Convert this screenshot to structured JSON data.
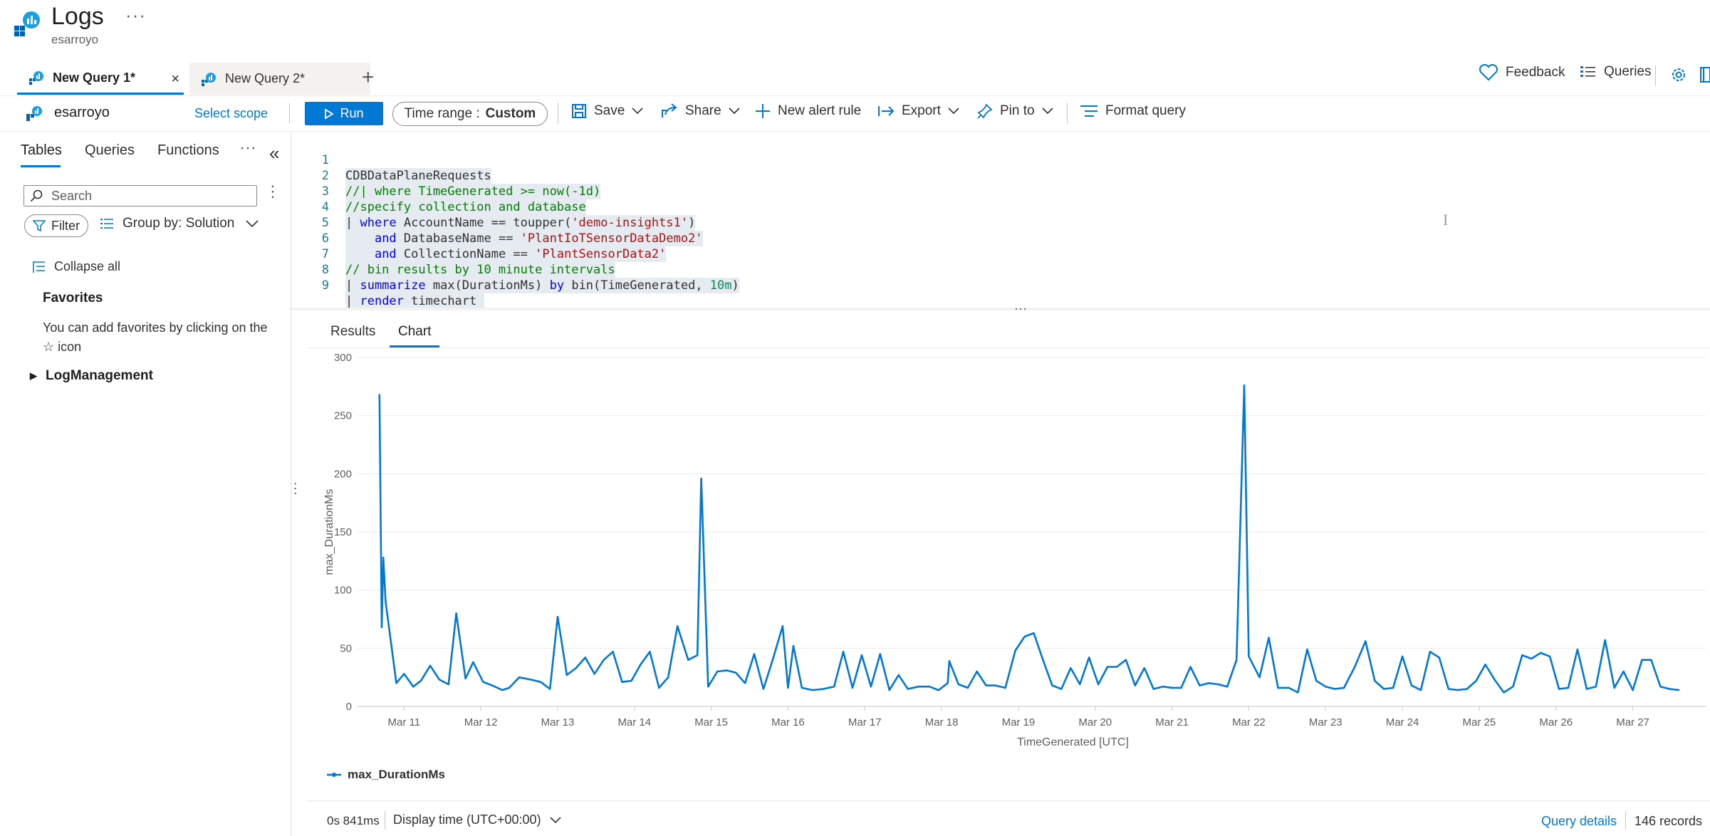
{
  "app": {
    "title": "Logs",
    "subtitle": "esarroyo",
    "more": "···"
  },
  "tabs": [
    {
      "label": "New Query 1*",
      "active": true,
      "close": "×"
    },
    {
      "label": "New Query 2*",
      "active": false
    }
  ],
  "add_tab": "+",
  "header_actions": {
    "feedback": "Feedback",
    "queries": "Queries"
  },
  "toolbar": {
    "scope_name": "esarroyo",
    "select_scope": "Select scope",
    "run": "Run",
    "time_range_label": "Time range :",
    "time_range_value": "Custom",
    "save": "Save",
    "share": "Share",
    "new_alert_rule": "New alert rule",
    "export": "Export",
    "pin_to": "Pin to",
    "format_query": "Format query"
  },
  "left_panel": {
    "tabs": [
      "Tables",
      "Queries",
      "Functions"
    ],
    "more": "···",
    "collapse": "«",
    "search_placeholder": "Search",
    "search_more": "⋮",
    "filter": "Filter",
    "group_by": "Group by: Solution",
    "collapse_all": "Collapse all",
    "favorites_title": "Favorites",
    "favorites_text": "You can add favorites by clicking on the ☆ icon",
    "tree": [
      "LogManagement"
    ]
  },
  "editor": {
    "lines": [
      {
        "n": "1",
        "text": "CDBDataPlaneRequests"
      },
      {
        "n": "2",
        "text": "//| where TimeGenerated >= now(-1d)"
      },
      {
        "n": "3",
        "text": "//specify collection and database"
      },
      {
        "n": "4",
        "text": "| where AccountName == toupper('demo-insights1')"
      },
      {
        "n": "5",
        "text": "    and DatabaseName == 'PlantIoTSensorDataDemo2'"
      },
      {
        "n": "6",
        "text": "    and CollectionName == 'PlantSensorData2'"
      },
      {
        "n": "7",
        "text": "// bin results by 10 minute intervals"
      },
      {
        "n": "8",
        "text": "| summarize max(DurationMs) by bin(TimeGenerated, 10m)"
      },
      {
        "n": "9",
        "text": "| render timechart"
      }
    ],
    "split_dots": "···"
  },
  "results": {
    "tabs": [
      "Results",
      "Chart"
    ],
    "active_tab": "Chart",
    "exec_time": "0s 841ms",
    "display_time": "Display time (UTC+00:00)",
    "query_details": "Query details",
    "records": "146 records"
  },
  "chart_data": {
    "type": "line",
    "xlabel": "TimeGenerated [UTC]",
    "ylabel": "max_DurationMs",
    "ylim": [
      0,
      300
    ],
    "yticks": [
      0,
      50,
      100,
      150,
      200,
      250,
      300
    ],
    "xlim": [
      10.45,
      27.95
    ],
    "xticks": [
      {
        "v": 11,
        "label": "Mar 11"
      },
      {
        "v": 12,
        "label": "Mar 12"
      },
      {
        "v": 13,
        "label": "Mar 13"
      },
      {
        "v": 14,
        "label": "Mar 14"
      },
      {
        "v": 15,
        "label": "Mar 15"
      },
      {
        "v": 16,
        "label": "Mar 16"
      },
      {
        "v": 17,
        "label": "Mar 17"
      },
      {
        "v": 18,
        "label": "Mar 18"
      },
      {
        "v": 19,
        "label": "Mar 19"
      },
      {
        "v": 20,
        "label": "Mar 20"
      },
      {
        "v": 21,
        "label": "Mar 21"
      },
      {
        "v": 22,
        "label": "Mar 22"
      },
      {
        "v": 23,
        "label": "Mar 23"
      },
      {
        "v": 24,
        "label": "Mar 24"
      },
      {
        "v": 25,
        "label": "Mar 25"
      },
      {
        "v": 26,
        "label": "Mar 26"
      },
      {
        "v": 27,
        "label": "Mar 27"
      }
    ],
    "grid": true,
    "legend_position": "bottom-left",
    "color": "#0078d4",
    "series": [
      {
        "name": "max_DurationMs",
        "points": [
          [
            10.68,
            268
          ],
          [
            10.71,
            68
          ],
          [
            10.73,
            128
          ],
          [
            10.76,
            90
          ],
          [
            10.9,
            20
          ],
          [
            11.0,
            28
          ],
          [
            11.12,
            17
          ],
          [
            11.22,
            22
          ],
          [
            11.34,
            35
          ],
          [
            11.46,
            23
          ],
          [
            11.58,
            19
          ],
          [
            11.68,
            80
          ],
          [
            11.8,
            24
          ],
          [
            11.9,
            38
          ],
          [
            12.03,
            21
          ],
          [
            12.15,
            18
          ],
          [
            12.28,
            14
          ],
          [
            12.37,
            16
          ],
          [
            12.5,
            25
          ],
          [
            12.65,
            23
          ],
          [
            12.78,
            21
          ],
          [
            12.9,
            15
          ],
          [
            13.0,
            77
          ],
          [
            13.12,
            27
          ],
          [
            13.24,
            33
          ],
          [
            13.36,
            42
          ],
          [
            13.48,
            28
          ],
          [
            13.6,
            40
          ],
          [
            13.72,
            47
          ],
          [
            13.84,
            21
          ],
          [
            13.96,
            22
          ],
          [
            14.08,
            36
          ],
          [
            14.2,
            47
          ],
          [
            14.32,
            16
          ],
          [
            14.44,
            25
          ],
          [
            14.56,
            69
          ],
          [
            14.7,
            40
          ],
          [
            14.82,
            44
          ],
          [
            14.87,
            196
          ],
          [
            14.96,
            17
          ],
          [
            15.08,
            30
          ],
          [
            15.2,
            31
          ],
          [
            15.32,
            29
          ],
          [
            15.44,
            20
          ],
          [
            15.56,
            45
          ],
          [
            15.68,
            15
          ],
          [
            15.8,
            40
          ],
          [
            15.93,
            69
          ],
          [
            16.0,
            16
          ],
          [
            16.07,
            52
          ],
          [
            16.18,
            16
          ],
          [
            16.32,
            14
          ],
          [
            16.46,
            15
          ],
          [
            16.6,
            17
          ],
          [
            16.72,
            47
          ],
          [
            16.84,
            16
          ],
          [
            16.96,
            44
          ],
          [
            17.08,
            17
          ],
          [
            17.2,
            45
          ],
          [
            17.32,
            14
          ],
          [
            17.44,
            27
          ],
          [
            17.56,
            15
          ],
          [
            17.7,
            17
          ],
          [
            17.84,
            17
          ],
          [
            17.96,
            14
          ],
          [
            18.08,
            20
          ],
          [
            18.1,
            39
          ],
          [
            18.22,
            19
          ],
          [
            18.34,
            16
          ],
          [
            18.46,
            30
          ],
          [
            18.58,
            18
          ],
          [
            18.7,
            18
          ],
          [
            18.83,
            16
          ],
          [
            18.96,
            48
          ],
          [
            19.08,
            60
          ],
          [
            19.2,
            63
          ],
          [
            19.32,
            40
          ],
          [
            19.44,
            18
          ],
          [
            19.56,
            15
          ],
          [
            19.68,
            33
          ],
          [
            19.8,
            19
          ],
          [
            19.92,
            42
          ],
          [
            20.04,
            19
          ],
          [
            20.16,
            34
          ],
          [
            20.28,
            34
          ],
          [
            20.4,
            40
          ],
          [
            20.52,
            18
          ],
          [
            20.64,
            33
          ],
          [
            20.76,
            15
          ],
          [
            20.88,
            17
          ],
          [
            21.0,
            16
          ],
          [
            21.12,
            16
          ],
          [
            21.24,
            34
          ],
          [
            21.36,
            18
          ],
          [
            21.48,
            20
          ],
          [
            21.6,
            19
          ],
          [
            21.72,
            17
          ],
          [
            21.84,
            40
          ],
          [
            21.94,
            276
          ],
          [
            22.0,
            43
          ],
          [
            22.14,
            25
          ],
          [
            22.26,
            59
          ],
          [
            22.38,
            16
          ],
          [
            22.52,
            16
          ],
          [
            22.64,
            12
          ],
          [
            22.76,
            49
          ],
          [
            22.88,
            22
          ],
          [
            23.0,
            17
          ],
          [
            23.12,
            15
          ],
          [
            23.24,
            16
          ],
          [
            23.38,
            34
          ],
          [
            23.52,
            56
          ],
          [
            23.64,
            22
          ],
          [
            23.76,
            15
          ],
          [
            23.88,
            16
          ],
          [
            24.0,
            43
          ],
          [
            24.12,
            18
          ],
          [
            24.24,
            14
          ],
          [
            24.36,
            47
          ],
          [
            24.48,
            42
          ],
          [
            24.6,
            15
          ],
          [
            24.72,
            14
          ],
          [
            24.84,
            15
          ],
          [
            24.96,
            22
          ],
          [
            25.08,
            36
          ],
          [
            25.2,
            23
          ],
          [
            25.32,
            12
          ],
          [
            25.44,
            17
          ],
          [
            25.56,
            44
          ],
          [
            25.68,
            41
          ],
          [
            25.8,
            46
          ],
          [
            25.92,
            43
          ],
          [
            26.04,
            15
          ],
          [
            26.16,
            16
          ],
          [
            26.28,
            49
          ],
          [
            26.4,
            15
          ],
          [
            26.52,
            17
          ],
          [
            26.64,
            57
          ],
          [
            26.76,
            16
          ],
          [
            26.88,
            30
          ],
          [
            27.0,
            14
          ],
          [
            27.12,
            40
          ],
          [
            27.24,
            40
          ],
          [
            27.36,
            17
          ],
          [
            27.48,
            15
          ],
          [
            27.6,
            14
          ]
        ]
      }
    ]
  }
}
